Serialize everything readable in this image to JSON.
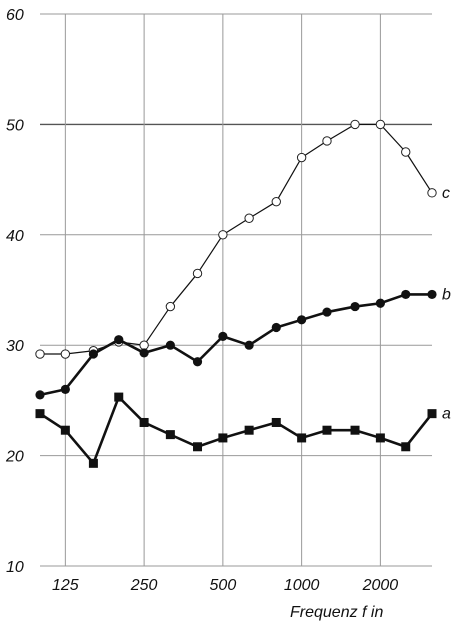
{
  "chart_data": {
    "type": "line",
    "xlabel": "Frequenz f in",
    "ylim": [
      10,
      60
    ],
    "yticks": [
      10,
      20,
      30,
      40,
      50,
      60
    ],
    "xticks": [
      "125",
      "250",
      "500",
      "1000",
      "2000"
    ],
    "x": [
      100,
      125,
      160,
      200,
      250,
      315,
      400,
      500,
      630,
      800,
      1000,
      1250,
      1600,
      2000,
      2500,
      3150
    ],
    "grid": true,
    "series": [
      {
        "name": "c",
        "marker": "open-circle",
        "line": "thin",
        "values": [
          29.2,
          29.2,
          29.5,
          30.3,
          30.0,
          33.5,
          36.5,
          40.0,
          41.5,
          43.0,
          47.0,
          48.5,
          50.0,
          50.0,
          47.5,
          43.8
        ]
      },
      {
        "name": "b",
        "marker": "filled-circle",
        "line": "thick",
        "values": [
          25.5,
          26.0,
          29.2,
          30.5,
          29.3,
          30.0,
          28.5,
          30.8,
          30.0,
          31.6,
          32.3,
          33.0,
          33.5,
          33.8,
          34.6,
          34.6
        ]
      },
      {
        "name": "a",
        "marker": "filled-square",
        "line": "thick",
        "values": [
          23.8,
          22.3,
          19.3,
          25.3,
          23.0,
          21.9,
          20.8,
          21.6,
          22.3,
          23.0,
          21.6,
          22.3,
          22.3,
          21.6,
          20.8,
          23.8
        ]
      }
    ]
  }
}
